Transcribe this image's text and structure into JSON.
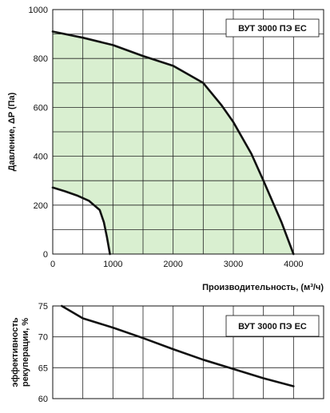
{
  "chart_data": [
    {
      "type": "area",
      "ylabel": "Давление, ΔP (Па)",
      "xlabel": "Производительность, (м³/ч)",
      "legend": "ВУТ 3000 ПЭ ЕС",
      "legend_position": "top-right",
      "grid": true,
      "xlim": [
        0,
        4500
      ],
      "ylim": [
        0,
        1000
      ],
      "x_ticks": [
        "0",
        "1000",
        "2000",
        "3000",
        "4000"
      ],
      "y_ticks": [
        "0",
        "200",
        "400",
        "600",
        "800",
        "1000"
      ],
      "fill_color": "#d9efd0",
      "series": [
        {
          "role": "max",
          "points": [
            [
              0,
              910
            ],
            [
              500,
              885
            ],
            [
              1000,
              855
            ],
            [
              1500,
              810
            ],
            [
              2000,
              770
            ],
            [
              2500,
              700
            ],
            [
              2800,
              610
            ],
            [
              3000,
              540
            ],
            [
              3300,
              410
            ],
            [
              3500,
              300
            ],
            [
              3800,
              130
            ],
            [
              4000,
              0
            ]
          ]
        },
        {
          "role": "min",
          "points": [
            [
              0,
              272
            ],
            [
              200,
              257
            ],
            [
              400,
              240
            ],
            [
              600,
              218
            ],
            [
              780,
              180
            ],
            [
              850,
              130
            ],
            [
              900,
              70
            ],
            [
              950,
              0
            ]
          ]
        }
      ]
    },
    {
      "type": "line",
      "ylabel": "эффективность рекуперации, %",
      "legend": "ВУТ 3000 ПЭ ЕС",
      "legend_position": "top-right",
      "grid": true,
      "xlim": [
        0,
        4500
      ],
      "ylim": [
        60,
        75
      ],
      "y_ticks": [
        "60",
        "65",
        "70",
        "75"
      ],
      "series": [
        {
          "points": [
            [
              150,
              75
            ],
            [
              500,
              73
            ],
            [
              1000,
              71.5
            ],
            [
              1500,
              69.8
            ],
            [
              2000,
              68
            ],
            [
              2500,
              66.3
            ],
            [
              3000,
              64.8
            ],
            [
              3500,
              63.3
            ],
            [
              4000,
              62
            ]
          ]
        }
      ]
    }
  ]
}
